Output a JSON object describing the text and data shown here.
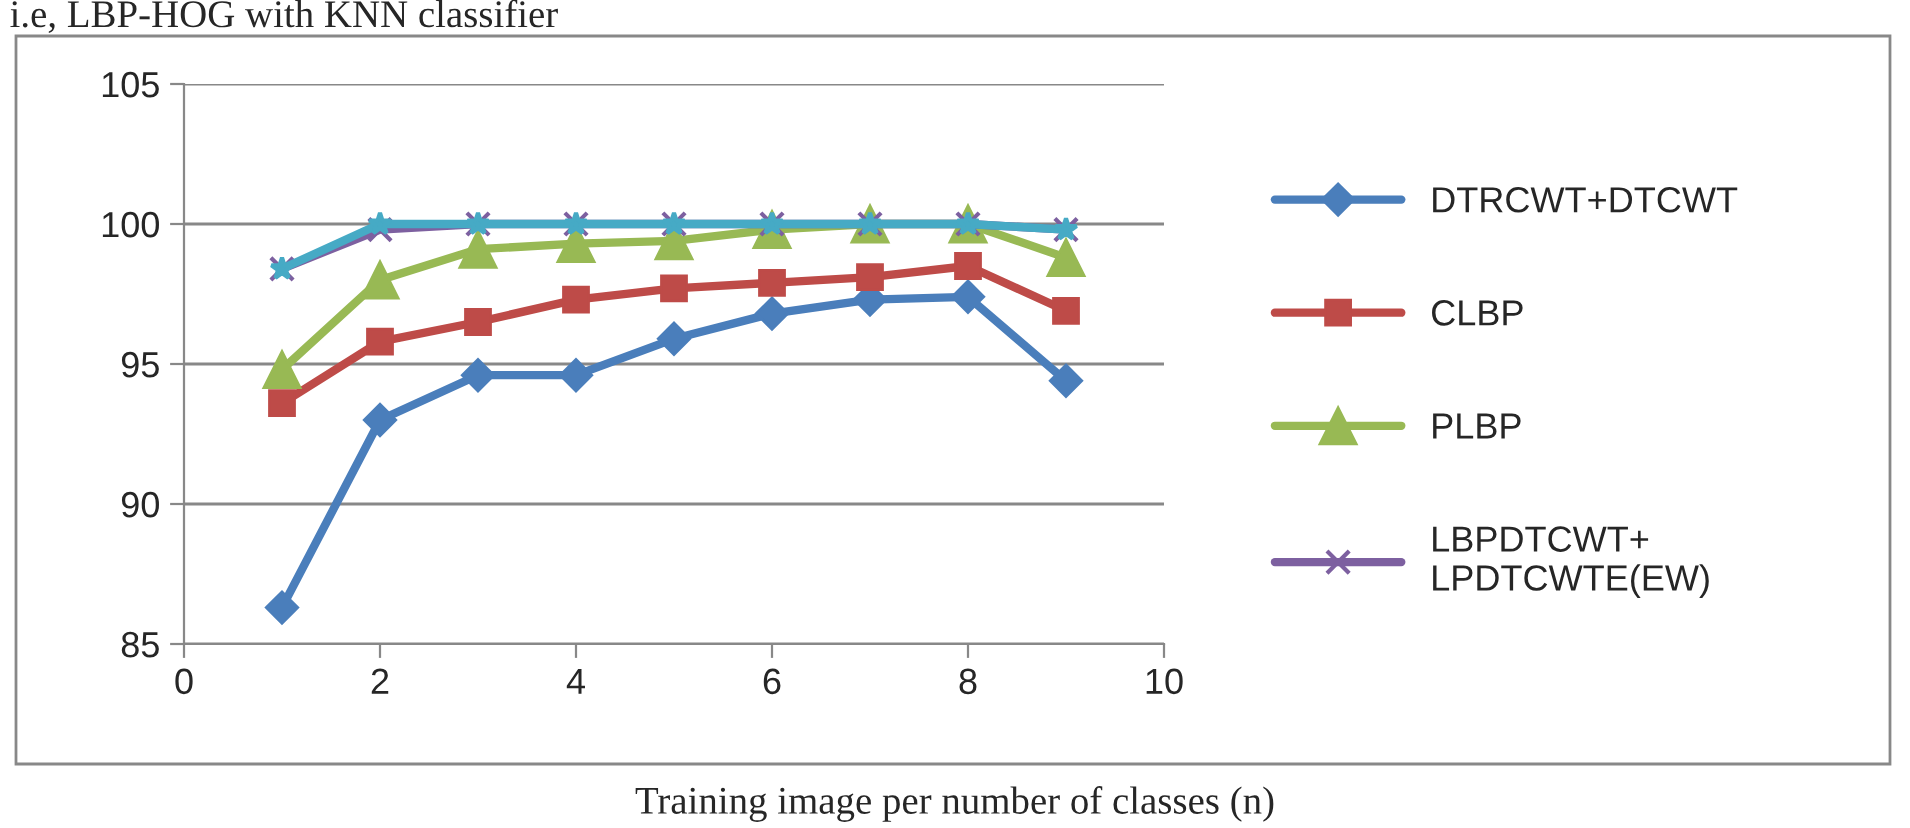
{
  "chart_data": {
    "type": "line",
    "xlabel": "Training image per number of classes (n)",
    "annotations": [
      "i.e, LBP-HOG with KNN classifier"
    ],
    "x": [
      1,
      2,
      3,
      4,
      5,
      6,
      7,
      8,
      9
    ],
    "series": [
      {
        "name": "DTRCWT+DTCWT",
        "color": "#4a7ebb",
        "marker": "diamond",
        "values": [
          86.3,
          93.0,
          94.6,
          94.6,
          95.9,
          96.8,
          97.3,
          97.4,
          94.4
        ]
      },
      {
        "name": "CLBP",
        "color": "#be4b48",
        "marker": "square",
        "values": [
          93.6,
          95.8,
          96.5,
          97.3,
          97.7,
          97.9,
          98.1,
          98.5,
          96.9
        ]
      },
      {
        "name": "PLBP",
        "color": "#98b954",
        "marker": "triangle",
        "values": [
          94.8,
          98.0,
          99.1,
          99.3,
          99.4,
          99.8,
          100,
          100,
          98.8
        ]
      },
      {
        "name": "LBPDTCWT+\nLPDTCWTE(EW)",
        "color": "#7d60a0",
        "marker": "cross",
        "values": [
          98.4,
          99.8,
          100,
          100,
          100,
          100,
          100,
          100,
          99.8
        ]
      },
      {
        "color": "#46aac5",
        "marker": "star",
        "values": [
          98.4,
          100,
          100,
          100,
          100,
          100,
          100,
          100,
          99.8
        ]
      }
    ],
    "xlim": [
      0,
      10
    ],
    "xticks": [
      0,
      2,
      4,
      6,
      8,
      10
    ],
    "ylim": [
      85,
      105
    ],
    "yticks": [
      85,
      90,
      95,
      100,
      105
    ],
    "grid": "y",
    "legend": "right",
    "line_style": "solid"
  }
}
